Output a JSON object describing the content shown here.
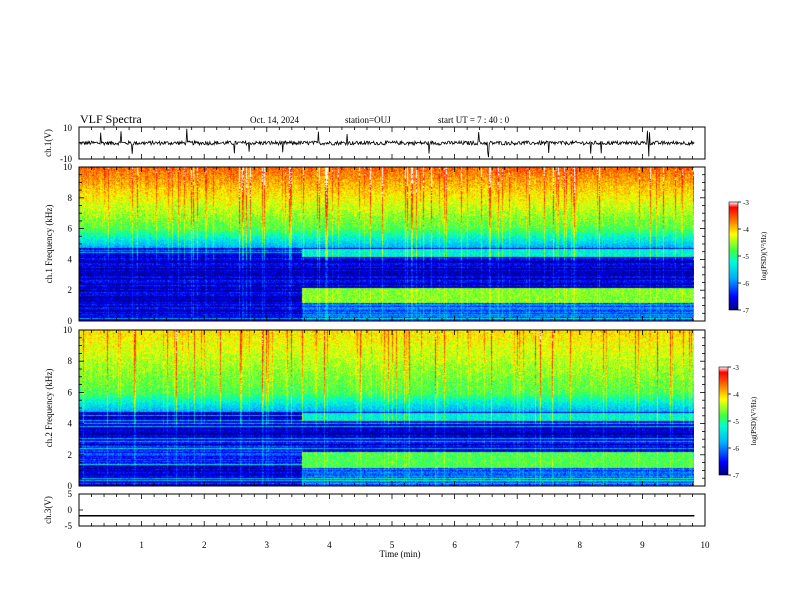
{
  "header": {
    "title": "VLF Spectra",
    "date": "Oct. 14, 2024",
    "station": "station=OUJ",
    "start_ut": "start  UT =   7 : 40 : 0"
  },
  "chart_data": [
    {
      "id": "ch1-waveform",
      "type": "line",
      "ylabel": "ch.1(V)",
      "ylim": [
        -10,
        10
      ],
      "yticks": [
        "10",
        "-10"
      ],
      "xlim": [
        0,
        10
      ],
      "data_extent_min": 9.83,
      "baseline_v": 0,
      "noise_amplitude_v": 2.5,
      "spike_amplitude_v": 9
    },
    {
      "id": "ch1-spectrogram",
      "type": "heatmap",
      "ylabel": "ch.1  Frequency (kHz)",
      "ylim": [
        0,
        10
      ],
      "yticks": [
        "0",
        "2",
        "4",
        "6",
        "8",
        "10"
      ],
      "xlim": [
        0,
        10
      ],
      "data_extent_min": 9.83,
      "transition_min": 3.55,
      "colorbar": {
        "label": "log(PSD)(V²/Hz)",
        "range": [
          -7,
          -3
        ],
        "ticks": [
          "-3",
          "-4",
          "-5",
          "-6",
          "-7"
        ]
      }
    },
    {
      "id": "ch2-spectrogram",
      "type": "heatmap",
      "ylabel": "ch.2  Frequency (kHz)",
      "ylim": [
        0,
        10
      ],
      "yticks": [
        "0",
        "2",
        "4",
        "6",
        "8",
        "10"
      ],
      "xlim": [
        0,
        10
      ],
      "data_extent_min": 9.83,
      "transition_min": 3.55,
      "colorbar": {
        "label": "log(PSD)(V²/Hz)",
        "range": [
          -7,
          -3
        ],
        "ticks": [
          "-3",
          "-4",
          "-5",
          "-6",
          "-7"
        ]
      }
    },
    {
      "id": "ch3-waveform",
      "type": "line",
      "ylabel": "ch.3(V)",
      "ylim": [
        -5,
        5
      ],
      "yticks": [
        "5",
        "0",
        "-5"
      ],
      "xlim": [
        0,
        10
      ],
      "data_extent_min": 9.83,
      "baseline_v": -1.8
    }
  ],
  "xaxis": {
    "label": "Time (min)",
    "ticks": [
      "0",
      "1",
      "2",
      "3",
      "4",
      "5",
      "6",
      "7",
      "8",
      "9",
      "10"
    ]
  }
}
